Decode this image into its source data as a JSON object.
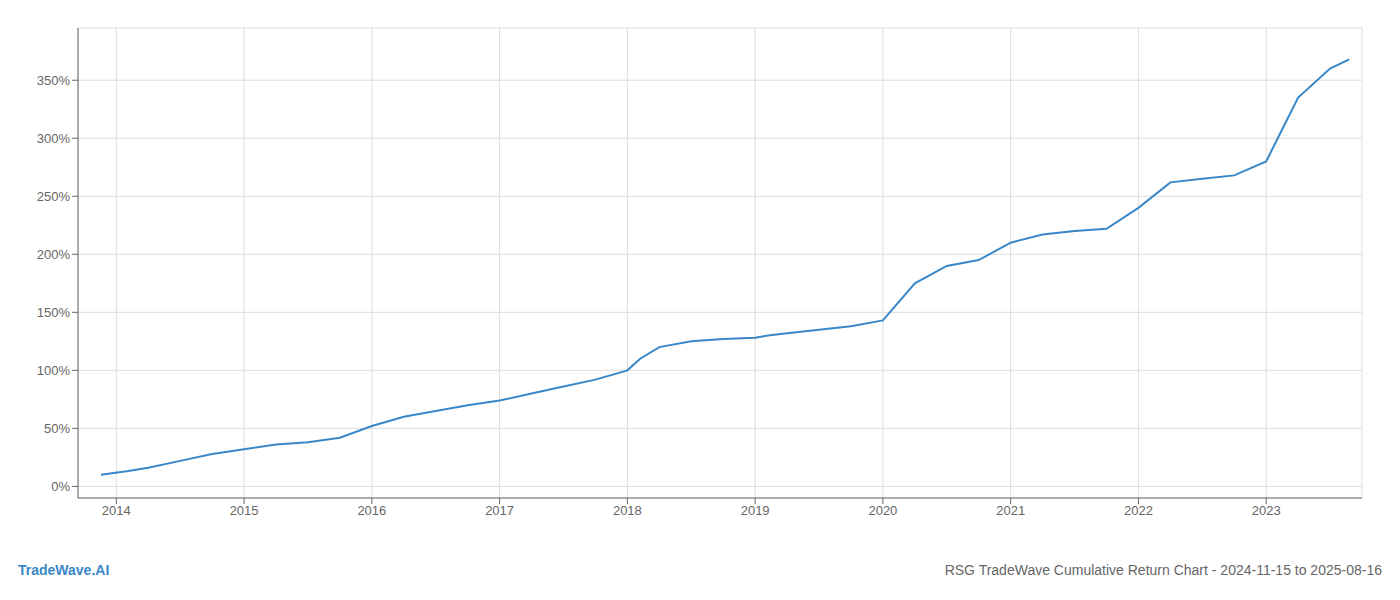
{
  "chart_data": {
    "type": "line",
    "title": "RSG TradeWave Cumulative Return Chart - 2024-11-15 to 2025-08-16",
    "annotations": [
      "TradeWave.AI"
    ],
    "x": [
      2013.88,
      2014.08,
      2014.25,
      2014.5,
      2014.75,
      2015.0,
      2015.25,
      2015.5,
      2015.75,
      2016.0,
      2016.25,
      2016.5,
      2016.75,
      2017.0,
      2017.25,
      2017.5,
      2017.75,
      2018.0,
      2018.1,
      2018.25,
      2018.5,
      2018.75,
      2019.0,
      2019.1,
      2019.25,
      2019.5,
      2019.75,
      2020.0,
      2020.25,
      2020.5,
      2020.75,
      2021.0,
      2021.25,
      2021.5,
      2021.75,
      2022.0,
      2022.25,
      2022.5,
      2022.75,
      2023.0,
      2023.25,
      2023.5,
      2023.65
    ],
    "values": [
      10,
      13,
      16,
      22,
      28,
      32,
      36,
      38,
      42,
      52,
      60,
      65,
      70,
      74,
      80,
      86,
      92,
      100,
      110,
      120,
      125,
      127,
      128,
      130,
      132,
      135,
      138,
      143,
      175,
      190,
      195,
      210,
      217,
      220,
      222,
      240,
      262,
      265,
      268,
      280,
      335,
      360,
      368
    ],
    "color": "#3a87c8",
    "xlim": [
      2013.7,
      2023.75
    ],
    "xticks": [
      2014,
      2015,
      2016,
      2017,
      2018,
      2019,
      2020,
      2021,
      2022,
      2023
    ],
    "ylim": [
      -10,
      395
    ],
    "yticks": [
      {
        "value": 0,
        "label": "0%"
      },
      {
        "value": 50,
        "label": "50%"
      },
      {
        "value": 100,
        "label": "100%"
      },
      {
        "value": 150,
        "label": "150%"
      },
      {
        "value": 200,
        "label": "200%"
      },
      {
        "value": 250,
        "label": "250%"
      },
      {
        "value": 300,
        "label": "300%"
      },
      {
        "value": 350,
        "label": "350%"
      }
    ],
    "grid": true
  }
}
